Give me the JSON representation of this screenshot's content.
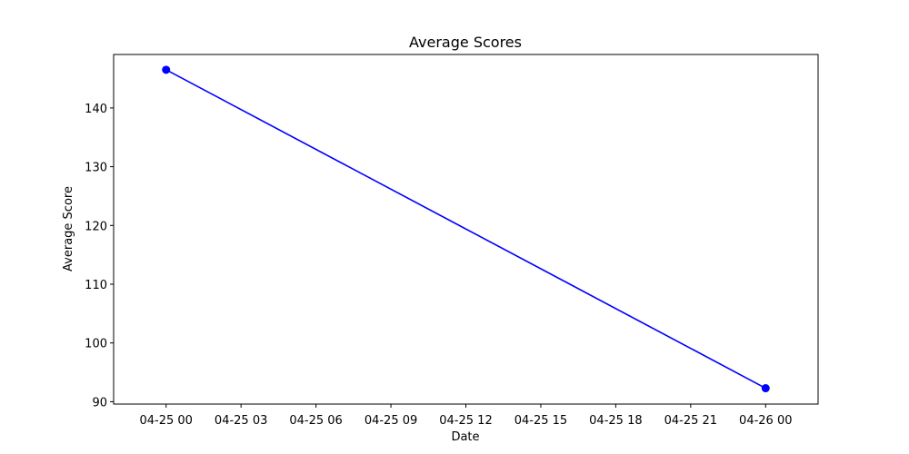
{
  "chart_data": {
    "type": "line",
    "title": "Average Scores",
    "xlabel": "Date",
    "ylabel": "Average Score",
    "x_tick_labels": [
      "04-25 00",
      "04-25 03",
      "04-25 06",
      "04-25 09",
      "04-25 12",
      "04-25 15",
      "04-25 18",
      "04-25 21",
      "04-26 00"
    ],
    "y_tick_labels": [
      "90",
      "100",
      "110",
      "120",
      "130",
      "140"
    ],
    "xlim": [
      "04-24 21:54",
      "04-26 02:06"
    ],
    "ylim": [
      89.6,
      149.1
    ],
    "grid": false,
    "series": [
      {
        "color": "#0000ff",
        "marker": "circle",
        "points": [
          {
            "x": "04-25 00",
            "y": 146.5
          },
          {
            "x": "04-26 00",
            "y": 92.3
          }
        ]
      }
    ]
  }
}
